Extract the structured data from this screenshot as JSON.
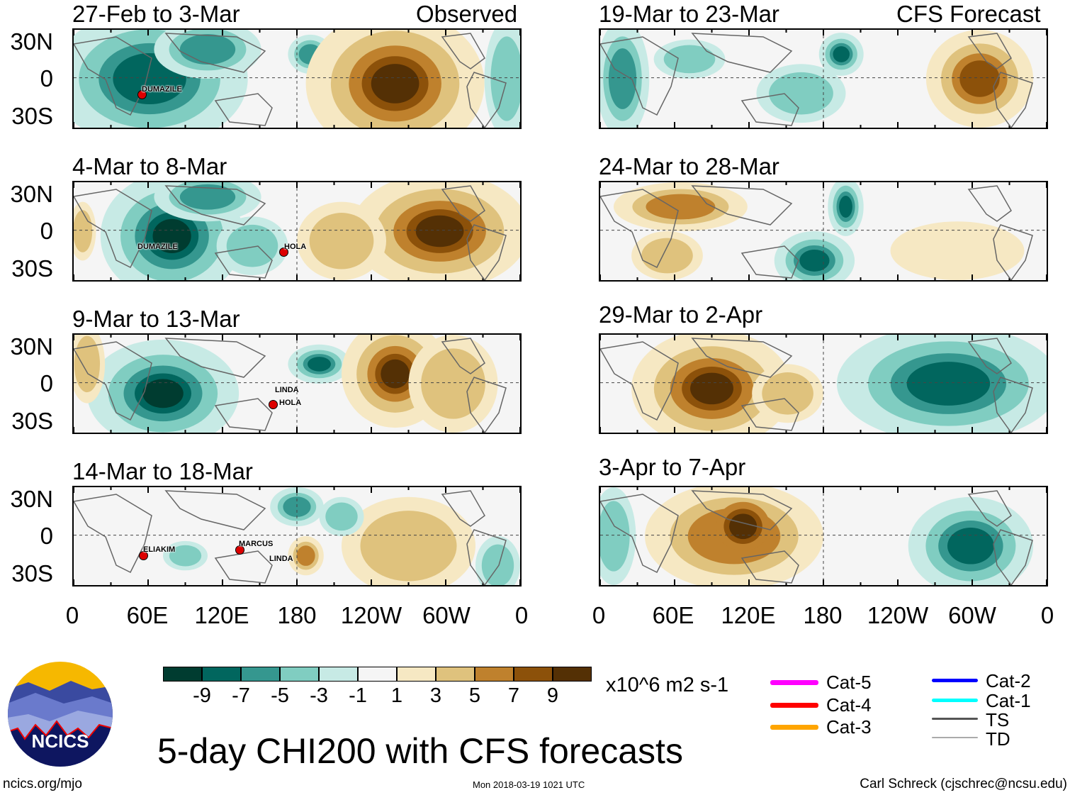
{
  "panels_left": [
    {
      "title": "27-Feb to 3-Mar",
      "tag": "Observed",
      "storms": [
        "DUMAZILE"
      ]
    },
    {
      "title": "4-Mar to 8-Mar",
      "storms": [
        "DUMAZILE",
        "HOLA"
      ]
    },
    {
      "title": "9-Mar to 13-Mar",
      "storms": [
        "LINDA",
        "HOLA"
      ]
    },
    {
      "title": "14-Mar to 18-Mar",
      "storms": [
        "ELIAKIM",
        "MARCUS",
        "LINDA"
      ]
    }
  ],
  "panels_right": [
    {
      "title": "19-Mar to 23-Mar",
      "tag": "CFS Forecast"
    },
    {
      "title": "24-Mar to 28-Mar"
    },
    {
      "title": "29-Mar to 2-Apr"
    },
    {
      "title": "3-Apr to 7-Apr"
    }
  ],
  "lat_labels": [
    "30N",
    "0",
    "30S"
  ],
  "lon_labels": [
    "0",
    "60E",
    "120E",
    "180",
    "120W",
    "60W",
    "0"
  ],
  "colorbar": {
    "colors": [
      "#003c30",
      "#01665e",
      "#35978f",
      "#80cdc1",
      "#c7eae5",
      "#f5f5f5",
      "#f6e8c3",
      "#dfc27d",
      "#bf812d",
      "#8c510a",
      "#543005"
    ],
    "labels": [
      "-9",
      "-7",
      "-5",
      "-3",
      "-1",
      "1",
      "3",
      "5",
      "7",
      "9"
    ],
    "units": "x10^6 m2 s-1"
  },
  "legend": [
    {
      "label": "Cat-5",
      "color": "#ff00ff"
    },
    {
      "label": "Cat-4",
      "color": "#ff0000"
    },
    {
      "label": "Cat-3",
      "color": "#ffa500"
    },
    {
      "label": "Cat-2",
      "color": "#0000ff"
    },
    {
      "label": "Cat-1",
      "color": "#00ffff"
    },
    {
      "label": "TS",
      "color": "#555555"
    },
    {
      "label": "TD",
      "color": "#aaaaaa"
    }
  ],
  "title": "5-day CHI200 with CFS forecasts",
  "logo_text": "NCICS",
  "footer": {
    "url": "ncics.org/mjo",
    "timestamp": "Mon 2018-03-19 1021 UTC",
    "author": "Carl Schreck (cjschrec@ncsu.edu)"
  }
}
